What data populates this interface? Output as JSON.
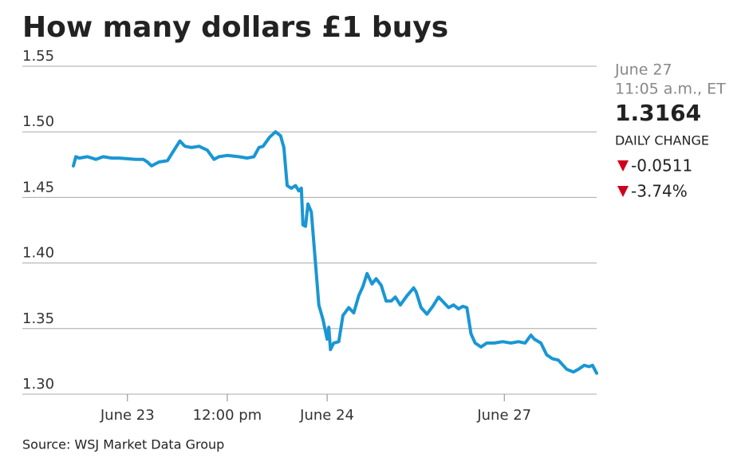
{
  "chart_data": {
    "type": "line",
    "title": "How many dollars £1 buys",
    "source": "Source: WSJ Market Data Group",
    "color": "#1a96d4",
    "grid": true,
    "info": {
      "date": "June 27",
      "time": "11:05 a.m., ET",
      "value": 1.3164,
      "label": "DAILY CHANGE",
      "changes": [
        -0.0511,
        "-3.74%"
      ]
    },
    "x": [
      -6.5,
      -6.2,
      -5.8,
      -4.8,
      -3.8,
      -2.9,
      -1.9,
      -1.0,
      1.0,
      1.9,
      2.4,
      2.9,
      3.8,
      4.8,
      5.6,
      6.3,
      6.9,
      7.7,
      8.6,
      9.6,
      10.4,
      11.0,
      12.0,
      13.4,
      14.4,
      15.2,
      15.8,
      16.3,
      17.1,
      17.8,
      18.4,
      18.8,
      19.2,
      19.7,
      20.2,
      20.6,
      20.9,
      21.1,
      21.4,
      21.7,
      22.1,
      22.6,
      23.0,
      23.5,
      24.0,
      24.2,
      24.4,
      24.8,
      25.4,
      25.9,
      26.6,
      27.2,
      27.8,
      28.3,
      28.8,
      29.4,
      29.9,
      30.5,
      31.1,
      31.7,
      32.2,
      32.8,
      33.6,
      34.4,
      34.7,
      35.3,
      36.0,
      36.7,
      37.4,
      38.0,
      38.6,
      39.2,
      39.8,
      40.3,
      40.8,
      41.3,
      41.8,
      42.5,
      43.2,
      44.1,
      45.1,
      46.1,
      47.0,
      47.8,
      48.5,
      48.9,
      49.7,
      50.4,
      51.1,
      51.8,
      52.8,
      53.6,
      54.2,
      54.9,
      55.5,
      55.9,
      56.4
    ],
    "values": [
      1.474,
      1.481,
      1.48,
      1.481,
      1.479,
      1.481,
      1.48,
      1.48,
      1.479,
      1.479,
      1.477,
      1.474,
      1.477,
      1.478,
      1.486,
      1.493,
      1.489,
      1.488,
      1.489,
      1.486,
      1.479,
      1.481,
      1.482,
      1.481,
      1.48,
      1.481,
      1.488,
      1.489,
      1.496,
      1.5,
      1.497,
      1.488,
      1.459,
      1.457,
      1.459,
      1.455,
      1.457,
      1.429,
      1.428,
      1.445,
      1.439,
      1.4,
      1.368,
      1.357,
      1.342,
      1.351,
      1.334,
      1.339,
      1.34,
      1.36,
      1.366,
      1.362,
      1.375,
      1.382,
      1.392,
      1.384,
      1.388,
      1.383,
      1.371,
      1.371,
      1.374,
      1.368,
      1.375,
      1.381,
      1.378,
      1.366,
      1.361,
      1.367,
      1.374,
      1.37,
      1.366,
      1.368,
      1.365,
      1.367,
      1.366,
      1.346,
      1.339,
      1.336,
      1.339,
      1.339,
      1.34,
      1.339,
      1.34,
      1.339,
      1.345,
      1.342,
      1.339,
      1.33,
      1.327,
      1.326,
      1.319,
      1.317,
      1.319,
      1.322,
      1.321,
      1.322,
      1.316
    ],
    "xlim": [
      -6.5,
      56.4
    ],
    "ylim": [
      1.3,
      1.55
    ],
    "yticks": [
      1.55,
      {
        "value": 1.5,
        "label": "1.50"
      },
      1.45,
      {
        "value": 1.4,
        "label": "1.40"
      },
      1.35,
      {
        "value": 1.3,
        "label": "1.30"
      }
    ],
    "xticks": [
      {
        "value": 0,
        "label": "June 23"
      },
      {
        "value": 12,
        "label": "12:00 pm"
      },
      {
        "value": 24,
        "label": "June 24"
      },
      {
        "value": 45.3,
        "label": "June 27"
      }
    ]
  }
}
